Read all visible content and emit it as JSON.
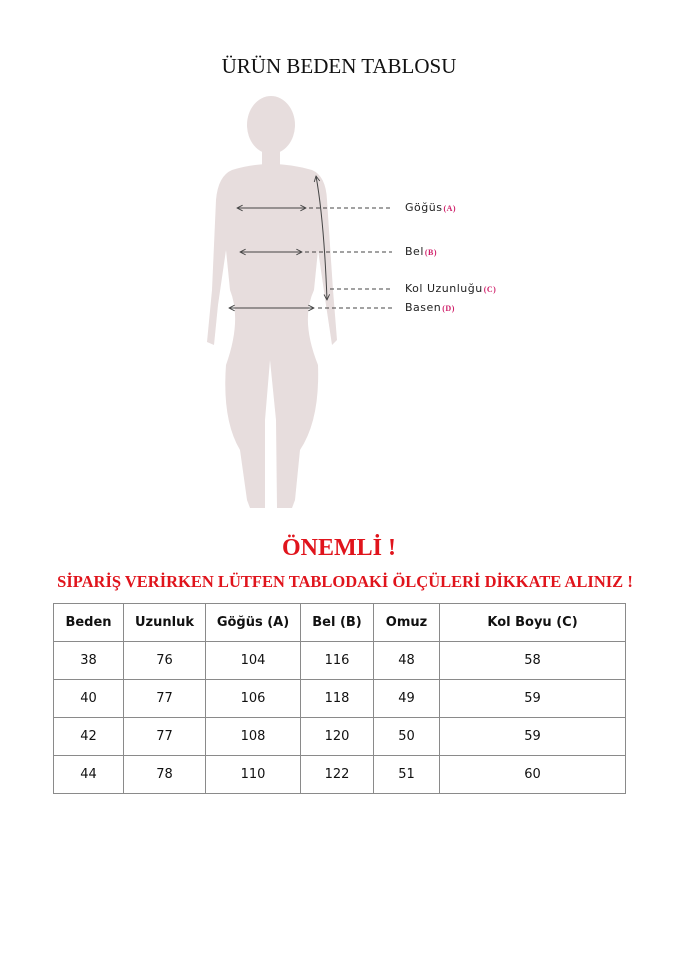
{
  "title": "ÜRÜN BEDEN TABLOSU",
  "figure": {
    "labels": [
      {
        "name": "Göğüs",
        "tag": "(A)"
      },
      {
        "name": "Bel",
        "tag": "(B)"
      },
      {
        "name": "Kol Uzunluğu",
        "tag": "(C)"
      },
      {
        "name": "Basen",
        "tag": "(D)"
      }
    ],
    "colors": {
      "silhouette": "#e7dddd",
      "tag": "#d0206a"
    }
  },
  "notice": {
    "heading": "ÖNEMLİ !",
    "message": "SİPARİŞ VERİRKEN LÜTFEN TABLODAKİ ÖLÇÜLERİ DİKKATE ALINIZ !",
    "color": "#e0141c"
  },
  "table": {
    "headers": [
      "Beden",
      "Uzunluk",
      "Göğüs (A)",
      "Bel (B)",
      "Omuz",
      "Kol Boyu (C)"
    ],
    "rows": [
      [
        "38",
        "76",
        "104",
        "116",
        "48",
        "58"
      ],
      [
        "40",
        "77",
        "106",
        "118",
        "49",
        "59"
      ],
      [
        "42",
        "77",
        "108",
        "120",
        "50",
        "59"
      ],
      [
        "44",
        "78",
        "110",
        "122",
        "51",
        "60"
      ]
    ]
  }
}
